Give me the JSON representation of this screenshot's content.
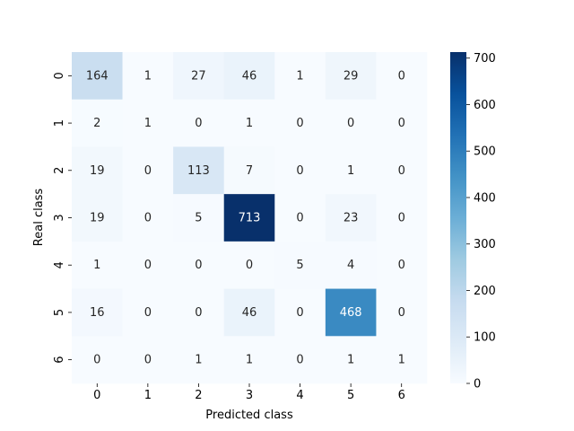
{
  "chart_data": {
    "type": "heatmap",
    "xlabel": "Predicted class",
    "ylabel": "Real class",
    "x_categories": [
      "0",
      "1",
      "2",
      "3",
      "4",
      "5",
      "6"
    ],
    "y_categories": [
      "0",
      "1",
      "2",
      "3",
      "4",
      "5",
      "6"
    ],
    "values": [
      [
        164,
        1,
        27,
        46,
        1,
        29,
        0
      ],
      [
        2,
        1,
        0,
        1,
        0,
        0,
        0
      ],
      [
        19,
        0,
        113,
        7,
        0,
        1,
        0
      ],
      [
        19,
        0,
        5,
        713,
        0,
        23,
        0
      ],
      [
        1,
        0,
        0,
        0,
        5,
        4,
        0
      ],
      [
        16,
        0,
        0,
        46,
        0,
        468,
        0
      ],
      [
        0,
        0,
        1,
        1,
        0,
        1,
        1
      ]
    ],
    "colormap": "Blues",
    "colorbar": {
      "range": [
        0,
        713
      ],
      "ticks": [
        0,
        100,
        200,
        300,
        400,
        500,
        600,
        700
      ]
    },
    "annotations": true
  }
}
